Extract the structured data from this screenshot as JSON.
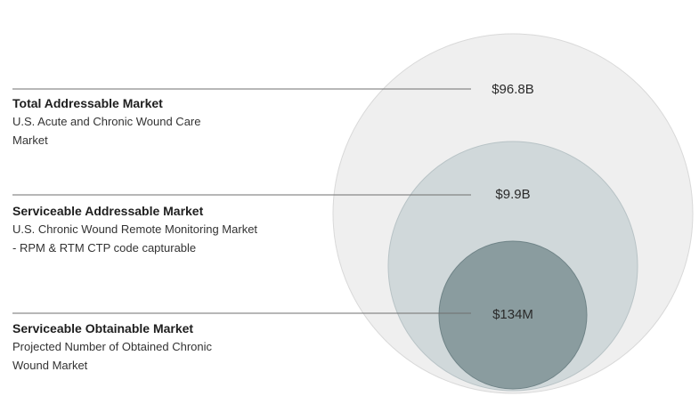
{
  "markets": [
    {
      "key": "tam",
      "title": "Total Addressable Market",
      "description": "U.S. Acute and Chronic Wound Care Market",
      "value": "$96.8B",
      "fill": "#efefef",
      "stroke": "#d9d9d9"
    },
    {
      "key": "sam",
      "title": "Serviceable Addressable Market",
      "description": "U.S. Chronic Wound Remote Monitoring Market - RPM & RTM CTP code capturable",
      "value": "$9.9B",
      "fill": "#d0d8da",
      "stroke": "#b8c3c6"
    },
    {
      "key": "som",
      "title": "Serviceable Obtainable Market",
      "description": "Projected Number of Obtained Chronic Wound Market",
      "value": "$134M",
      "fill": "#8a9c9f",
      "stroke": "#6f8387"
    }
  ]
}
